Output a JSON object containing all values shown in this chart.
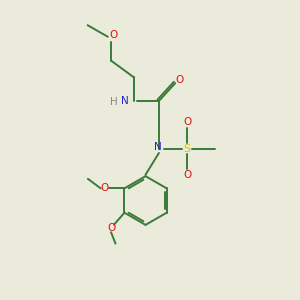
{
  "bg_color": "#ebebdc",
  "bond_color": "#3a7a3a",
  "N_color": "#2222cc",
  "O_color": "#dd1111",
  "S_color": "#cccc00",
  "H_color": "#888888",
  "font_size": 7.5,
  "line_width": 1.4,
  "fig_w": 3.0,
  "fig_h": 3.0,
  "dpi": 100,
  "xlim": [
    0,
    10
  ],
  "ylim": [
    0,
    10
  ]
}
